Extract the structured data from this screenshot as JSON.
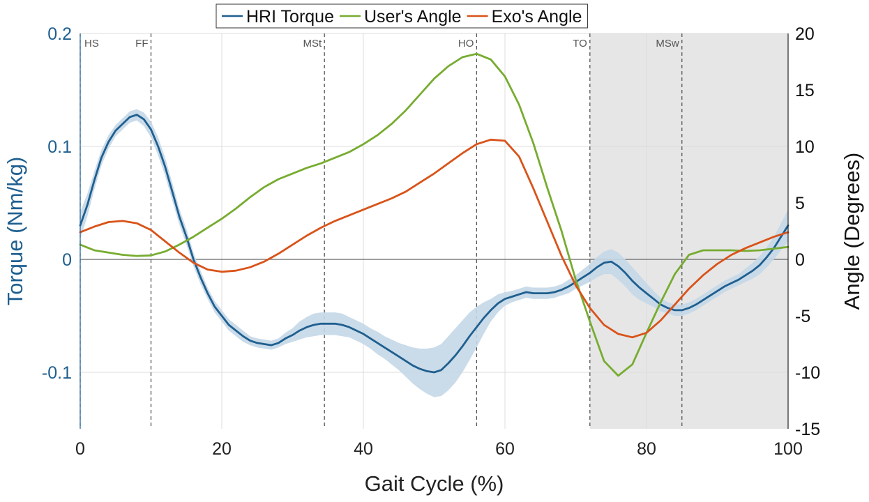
{
  "chart_data": {
    "type": "line",
    "xlabel": "Gait Cycle (%)",
    "ylabel_left": "Torque (Nm/kg)",
    "ylabel_right": "Angle (Degrees)",
    "xlim": [
      0,
      100
    ],
    "ylim_left": [
      -0.15,
      0.2
    ],
    "ylim_right": [
      -15,
      20
    ],
    "xticks": [
      "0",
      "20",
      "40",
      "60",
      "80",
      "100"
    ],
    "yticks_left": [
      "-0.1",
      "0",
      "0.1",
      "0.2"
    ],
    "yticks_right": [
      "-15",
      "-10",
      "-5",
      "0",
      "5",
      "10",
      "15",
      "20"
    ],
    "grid": true,
    "legend_position": "top-center",
    "shaded_region": {
      "x": [
        72,
        100
      ],
      "color": "#e6e6e6"
    },
    "phase_lines": [
      {
        "label": "HS",
        "x": 0
      },
      {
        "label": "FF",
        "x": 10
      },
      {
        "label": "MSt",
        "x": 34.5
      },
      {
        "label": "HO",
        "x": 56
      },
      {
        "label": "TO",
        "x": 72
      },
      {
        "label": "MSw",
        "x": 85
      }
    ],
    "series": [
      {
        "name": "HRI Torque",
        "axis": "left",
        "color": "#1f5f8f",
        "band_color": "#c4d7e7",
        "x": [
          0,
          1,
          2,
          3,
          4,
          5,
          6,
          7,
          8,
          9,
          10,
          11,
          12,
          13,
          14,
          15,
          16,
          17,
          18,
          19,
          20,
          21,
          22,
          23,
          24,
          25,
          26,
          27,
          28,
          29,
          30,
          31,
          32,
          33,
          34,
          35,
          36,
          37,
          38,
          39,
          40,
          41,
          42,
          43,
          44,
          45,
          46,
          47,
          48,
          49,
          50,
          51,
          52,
          53,
          54,
          55,
          56,
          57,
          58,
          59,
          60,
          61,
          62,
          63,
          64,
          65,
          66,
          67,
          68,
          69,
          70,
          71,
          72,
          73,
          74,
          75,
          76,
          77,
          78,
          79,
          80,
          81,
          82,
          83,
          84,
          85,
          86,
          87,
          88,
          89,
          90,
          91,
          92,
          93,
          94,
          95,
          96,
          97,
          98,
          99,
          100
        ],
        "y": [
          0.03,
          0.048,
          0.07,
          0.09,
          0.104,
          0.114,
          0.12,
          0.126,
          0.128,
          0.124,
          0.115,
          0.1,
          0.082,
          0.06,
          0.038,
          0.02,
          0.0,
          -0.016,
          -0.03,
          -0.042,
          -0.05,
          -0.058,
          -0.063,
          -0.068,
          -0.072,
          -0.074,
          -0.075,
          -0.076,
          -0.074,
          -0.07,
          -0.067,
          -0.063,
          -0.06,
          -0.058,
          -0.057,
          -0.057,
          -0.057,
          -0.058,
          -0.06,
          -0.063,
          -0.066,
          -0.07,
          -0.074,
          -0.078,
          -0.082,
          -0.086,
          -0.09,
          -0.094,
          -0.097,
          -0.099,
          -0.1,
          -0.098,
          -0.092,
          -0.085,
          -0.077,
          -0.068,
          -0.06,
          -0.052,
          -0.045,
          -0.039,
          -0.035,
          -0.033,
          -0.031,
          -0.029,
          -0.03,
          -0.03,
          -0.03,
          -0.029,
          -0.027,
          -0.024,
          -0.02,
          -0.016,
          -0.012,
          -0.007,
          -0.003,
          -0.002,
          -0.006,
          -0.012,
          -0.019,
          -0.025,
          -0.03,
          -0.035,
          -0.04,
          -0.043,
          -0.045,
          -0.045,
          -0.043,
          -0.04,
          -0.036,
          -0.032,
          -0.028,
          -0.024,
          -0.021,
          -0.018,
          -0.014,
          -0.01,
          -0.005,
          0.002,
          0.01,
          0.02,
          0.03
        ],
        "band": [
          0.012,
          0.01,
          0.008,
          0.007,
          0.006,
          0.005,
          0.005,
          0.005,
          0.005,
          0.006,
          0.007,
          0.008,
          0.008,
          0.008,
          0.007,
          0.007,
          0.006,
          0.006,
          0.005,
          0.005,
          0.005,
          0.005,
          0.005,
          0.005,
          0.004,
          0.004,
          0.004,
          0.004,
          0.004,
          0.005,
          0.006,
          0.008,
          0.009,
          0.01,
          0.01,
          0.01,
          0.01,
          0.01,
          0.009,
          0.009,
          0.009,
          0.009,
          0.01,
          0.01,
          0.011,
          0.012,
          0.014,
          0.016,
          0.018,
          0.02,
          0.022,
          0.023,
          0.024,
          0.024,
          0.023,
          0.021,
          0.018,
          0.014,
          0.01,
          0.008,
          0.006,
          0.005,
          0.005,
          0.005,
          0.005,
          0.005,
          0.005,
          0.005,
          0.005,
          0.006,
          0.006,
          0.007,
          0.008,
          0.009,
          0.01,
          0.011,
          0.012,
          0.012,
          0.012,
          0.011,
          0.009,
          0.007,
          0.006,
          0.005,
          0.005,
          0.005,
          0.005,
          0.005,
          0.005,
          0.005,
          0.005,
          0.005,
          0.005,
          0.005,
          0.006,
          0.007,
          0.008,
          0.009,
          0.01,
          0.012,
          0.014
        ]
      },
      {
        "name": "User's Angle",
        "axis": "right",
        "color": "#77ac30",
        "x": [
          0,
          2,
          4,
          6,
          8,
          10,
          12,
          14,
          16,
          18,
          20,
          22,
          24,
          26,
          28,
          30,
          32,
          34,
          36,
          38,
          40,
          42,
          44,
          46,
          48,
          50,
          52,
          54,
          56,
          58,
          60,
          62,
          64,
          66,
          68,
          70,
          72,
          74,
          76,
          78,
          80,
          82,
          84,
          86,
          88,
          90,
          92,
          94,
          96,
          98,
          100
        ],
        "y": [
          1.3,
          0.8,
          0.6,
          0.4,
          0.3,
          0.35,
          0.7,
          1.3,
          2.0,
          2.8,
          3.6,
          4.5,
          5.5,
          6.4,
          7.1,
          7.6,
          8.1,
          8.5,
          9.0,
          9.5,
          10.2,
          11.0,
          12.0,
          13.2,
          14.6,
          16.0,
          17.1,
          17.9,
          18.2,
          17.7,
          16.2,
          13.7,
          10.3,
          6.3,
          2.5,
          -1.8,
          -5.5,
          -9.0,
          -10.3,
          -9.3,
          -6.5,
          -3.8,
          -1.3,
          0.4,
          0.8,
          0.8,
          0.8,
          0.75,
          0.8,
          0.95,
          1.1
        ]
      },
      {
        "name": "Exo's Angle",
        "axis": "right",
        "color": "#d95319",
        "x": [
          0,
          2,
          4,
          6,
          8,
          10,
          12,
          14,
          16,
          18,
          20,
          22,
          24,
          26,
          28,
          30,
          32,
          34,
          36,
          38,
          40,
          42,
          44,
          46,
          48,
          50,
          52,
          54,
          56,
          58,
          60,
          62,
          64,
          66,
          68,
          70,
          72,
          74,
          76,
          78,
          80,
          82,
          84,
          86,
          88,
          90,
          92,
          94,
          96,
          98,
          100
        ],
        "y": [
          2.4,
          2.9,
          3.3,
          3.4,
          3.2,
          2.6,
          1.6,
          0.6,
          -0.3,
          -0.9,
          -1.1,
          -1.0,
          -0.7,
          -0.2,
          0.5,
          1.3,
          2.1,
          2.8,
          3.4,
          3.9,
          4.4,
          4.9,
          5.4,
          6.0,
          6.8,
          7.6,
          8.5,
          9.4,
          10.2,
          10.6,
          10.5,
          9.1,
          6.3,
          3.3,
          0.3,
          -2.3,
          -4.3,
          -5.8,
          -6.6,
          -6.9,
          -6.5,
          -5.4,
          -4.0,
          -2.6,
          -1.4,
          -0.4,
          0.4,
          1.0,
          1.5,
          2.0,
          2.4
        ]
      }
    ]
  }
}
